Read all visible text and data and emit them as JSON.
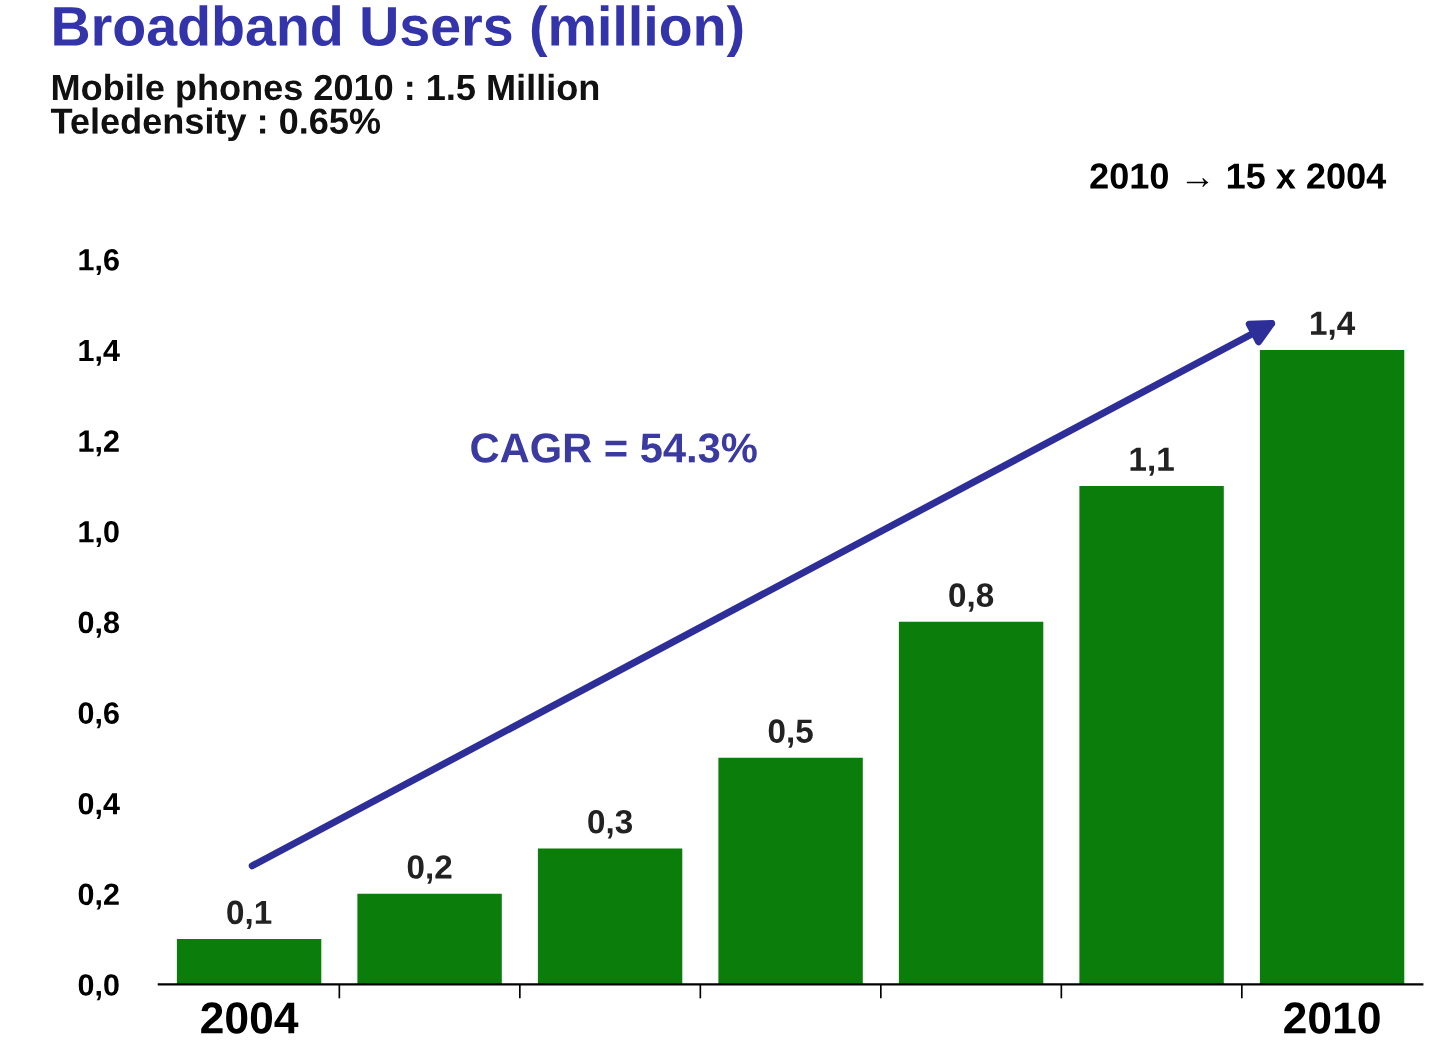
{
  "chart_data": {
    "type": "bar",
    "title": "Broadband Users (million)",
    "subtitle": "Mobile phones 2010 : 1.5 Million\nTeledensity : 0.65%",
    "categories": [
      "2004",
      null,
      null,
      null,
      null,
      null,
      "2010"
    ],
    "values": [
      0.1,
      0.2,
      0.3,
      0.5,
      0.8,
      1.1,
      1.4
    ],
    "value_labels": [
      "0,1",
      "0,2",
      "0,3",
      "0,5",
      "0,8",
      "1,1",
      "1,4"
    ],
    "color": "#0a7d0a",
    "ylim": [
      0,
      1.6
    ],
    "yticks": [
      {
        "value": 0,
        "label": "0,0"
      },
      {
        "value": 0.2,
        "label": "0,2"
      },
      {
        "value": 0.4,
        "label": "0,4"
      },
      {
        "value": 0.6,
        "label": "0,6"
      },
      {
        "value": 0.8,
        "label": "0,8"
      },
      {
        "value": 1.0,
        "label": "1,0"
      },
      {
        "value": 1.2,
        "label": "1,2"
      },
      {
        "value": 1.4,
        "label": "1,4"
      },
      {
        "value": 1.6,
        "label": "1,6"
      }
    ],
    "annotations": [
      "2010 → 15 x 2004",
      "CAGR = 54.3%"
    ],
    "grid": false,
    "legend": false
  }
}
